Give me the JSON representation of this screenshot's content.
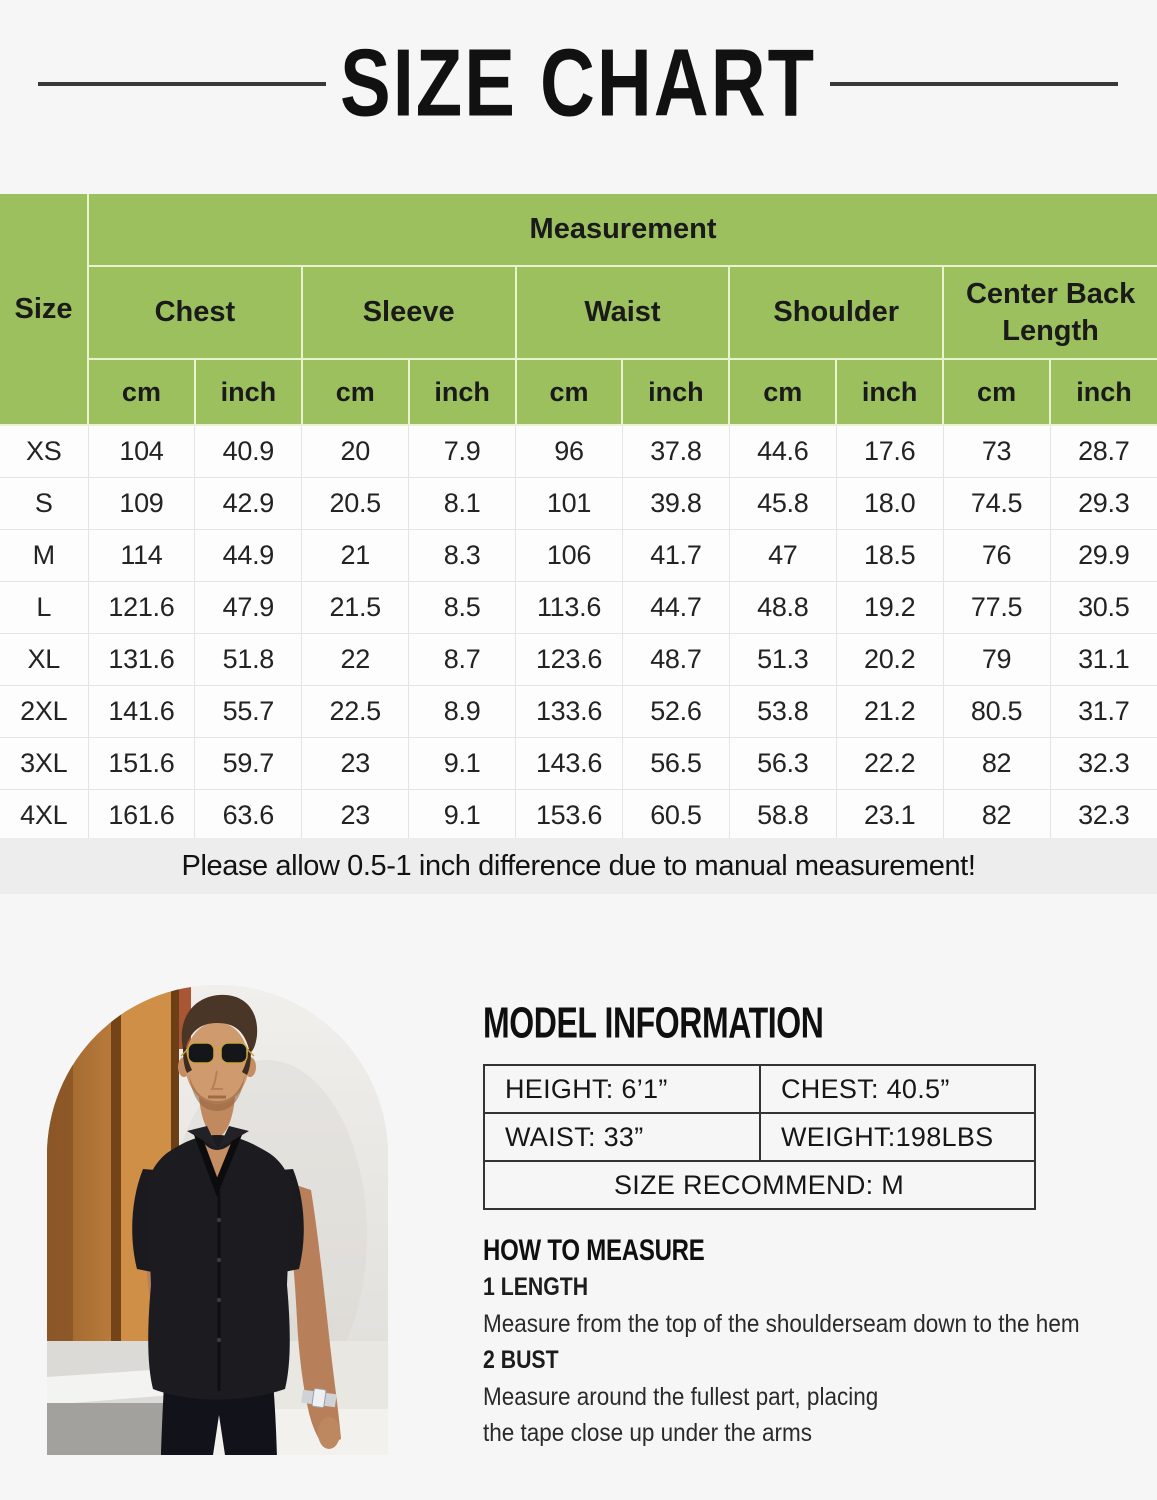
{
  "page": {
    "title": "SIZE CHART",
    "note": "Please allow 0.5-1 inch difference due to manual measurement!",
    "colors": {
      "header_green": "#9cc05e",
      "page_bg": "#f6f6f6",
      "note_band_bg": "#ededed",
      "title_rule": "#383838"
    }
  },
  "size_chart": {
    "measurement_header": "Measurement",
    "size_header": "Size",
    "measure_columns": [
      "Chest",
      "Sleeve",
      "Waist",
      "Shoulder",
      "Center Back Length"
    ],
    "unit_headers": [
      "cm",
      "inch"
    ],
    "rows": [
      {
        "size": "XS",
        "values": [
          "104",
          "40.9",
          "20",
          "7.9",
          "96",
          "37.8",
          "44.6",
          "17.6",
          "73",
          "28.7"
        ]
      },
      {
        "size": "S",
        "values": [
          "109",
          "42.9",
          "20.5",
          "8.1",
          "101",
          "39.8",
          "45.8",
          "18.0",
          "74.5",
          "29.3"
        ]
      },
      {
        "size": "M",
        "values": [
          "114",
          "44.9",
          "21",
          "8.3",
          "106",
          "41.7",
          "47",
          "18.5",
          "76",
          "29.9"
        ]
      },
      {
        "size": "L",
        "values": [
          "121.6",
          "47.9",
          "21.5",
          "8.5",
          "113.6",
          "44.7",
          "48.8",
          "19.2",
          "77.5",
          "30.5"
        ]
      },
      {
        "size": "XL",
        "values": [
          "131.6",
          "51.8",
          "22",
          "8.7",
          "123.6",
          "48.7",
          "51.3",
          "20.2",
          "79",
          "31.1"
        ]
      },
      {
        "size": "2XL",
        "values": [
          "141.6",
          "55.7",
          "22.5",
          "8.9",
          "133.6",
          "52.6",
          "53.8",
          "21.2",
          "80.5",
          "31.7"
        ]
      },
      {
        "size": "3XL",
        "values": [
          "151.6",
          "59.7",
          "23",
          "9.1",
          "143.6",
          "56.5",
          "56.3",
          "22.2",
          "82",
          "32.3"
        ]
      },
      {
        "size": "4XL",
        "values": [
          "161.6",
          "63.6",
          "23",
          "9.1",
          "153.6",
          "60.5",
          "58.8",
          "23.1",
          "82",
          "32.3"
        ]
      }
    ]
  },
  "model_info": {
    "heading": "MODEL INFORMATION",
    "rows": [
      [
        "HEIGHT:  6’1”",
        "CHEST:  40.5”"
      ],
      [
        "WAIST:  33”",
        "WEIGHT:198LBS"
      ]
    ],
    "recommend": "SIZE RECOMMEND:  M"
  },
  "how_to_measure": {
    "heading": "HOW TO MEASURE",
    "lines": [
      {
        "text": "1 LENGTH",
        "step": true
      },
      {
        "text": "Measure from the top of the shoulderseam down to the hem",
        "step": false
      },
      {
        "text": "2 BUST",
        "step": true
      },
      {
        "text": "Measure around the fullest part, placing",
        "step": false
      },
      {
        "text": "the tape close up under the arms",
        "step": false
      }
    ]
  },
  "photo": {
    "alt": "Male model wearing a black short-sleeve button-up shirt standing outdoors"
  }
}
